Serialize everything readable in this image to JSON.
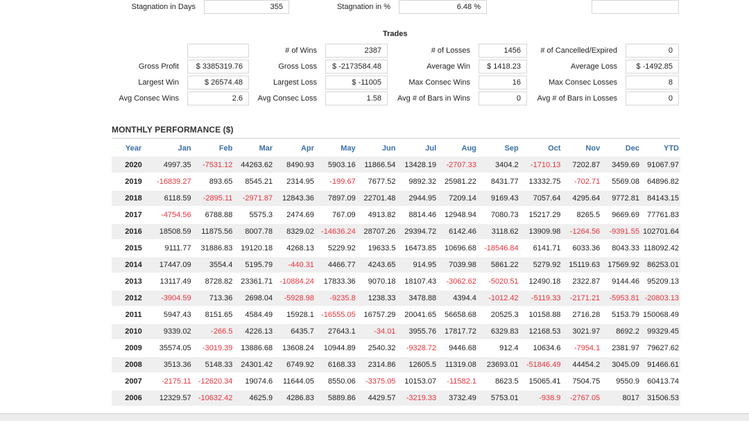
{
  "top_row": [
    {
      "label": "Stagnation in Days",
      "value": "355"
    },
    {
      "label": "Stagnation in %",
      "value": "6.48 %"
    },
    {
      "label": "",
      "value": ""
    }
  ],
  "trades": {
    "title": "Trades",
    "rows": [
      [
        {
          "label": "",
          "value": ""
        },
        {
          "label": "# of Wins",
          "value": "2387"
        },
        {
          "label": "# of Losses",
          "value": "1456"
        },
        {
          "label": "# of Cancelled/Expired",
          "value": "0"
        }
      ],
      [
        {
          "label": "Gross Profit",
          "value": "$ 3385319.76"
        },
        {
          "label": "Gross Loss",
          "value": "$ -2173584.48"
        },
        {
          "label": "Average Win",
          "value": "$ 1418.23"
        },
        {
          "label": "Average Loss",
          "value": "$ -1492.85"
        }
      ],
      [
        {
          "label": "Largest Win",
          "value": "$ 26574.48"
        },
        {
          "label": "Largest Loss",
          "value": "$ -11005"
        },
        {
          "label": "Max Consec Wins",
          "value": "16"
        },
        {
          "label": "Max Consec Losses",
          "value": "8"
        }
      ],
      [
        {
          "label": "Avg Consec Wins",
          "value": "2.6"
        },
        {
          "label": "Avg Consec Loss",
          "value": "1.58"
        },
        {
          "label": "Avg # of Bars in Wins",
          "value": "0"
        },
        {
          "label": "Avg # of Bars in Losses",
          "value": "0"
        }
      ]
    ]
  },
  "monthly": {
    "title": "MONTHLY PERFORMANCE ($)",
    "headers": [
      "Year",
      "Jan",
      "Feb",
      "Mar",
      "Apr",
      "May",
      "Jun",
      "Jul",
      "Aug",
      "Sep",
      "Oct",
      "Nov",
      "Dec",
      "YTD"
    ],
    "rows": [
      [
        "2020",
        "4997.35",
        "-7531.12",
        "44263.62",
        "8490.93",
        "5903.16",
        "11866.54",
        "13428.19",
        "-2707.33",
        "3404.2",
        "-1710.13",
        "7202.87",
        "3459.69",
        "91067.97"
      ],
      [
        "2019",
        "-16839.27",
        "893.65",
        "8545.21",
        "2314.95",
        "-199.67",
        "7677.52",
        "9892.32",
        "25981.22",
        "8431.77",
        "13332.75",
        "-702.71",
        "5569.08",
        "64896.82"
      ],
      [
        "2018",
        "6118.59",
        "-2895.11",
        "-2971.87",
        "12843.36",
        "7897.09",
        "22701.48",
        "2944.95",
        "7209.14",
        "9169.43",
        "7057.64",
        "4295.64",
        "9772.81",
        "84143.15"
      ],
      [
        "2017",
        "-4754.56",
        "6788.88",
        "5575.3",
        "2474.69",
        "767.09",
        "4913.82",
        "8814.46",
        "12948.94",
        "7080.73",
        "15217.29",
        "8265.5",
        "9669.69",
        "77761.83"
      ],
      [
        "2016",
        "18508.59",
        "11875.56",
        "8007.78",
        "8329.02",
        "-14636.24",
        "28707.26",
        "29394.72",
        "6142.46",
        "3118.62",
        "13909.98",
        "-1264.56",
        "-9391.55",
        "102701.64"
      ],
      [
        "2015",
        "9111.77",
        "31886.83",
        "19120.18",
        "4268.13",
        "5229.92",
        "19633.5",
        "16473.85",
        "10696.68",
        "-18546.84",
        "6141.71",
        "6033.36",
        "8043.33",
        "118092.42"
      ],
      [
        "2014",
        "17447.09",
        "3554.4",
        "5195.79",
        "-440.31",
        "4466.77",
        "4243.65",
        "914.95",
        "7039.98",
        "5861.22",
        "5279.92",
        "15119.63",
        "17569.92",
        "86253.01"
      ],
      [
        "2013",
        "13117.49",
        "8728.82",
        "23361.71",
        "-10884.24",
        "17833.36",
        "9070.18",
        "18107.43",
        "-3062.62",
        "-5020.51",
        "12490.18",
        "2322.87",
        "9144.46",
        "95209.13"
      ],
      [
        "2012",
        "-3904.59",
        "713.36",
        "2698.04",
        "-5928.98",
        "-9235.8",
        "1238.33",
        "3478.88",
        "4394.4",
        "-1012.42",
        "-5119.33",
        "-2171.21",
        "-5953.81",
        "-20803.13"
      ],
      [
        "2011",
        "5947.43",
        "8151.65",
        "4584.49",
        "15928.1",
        "-16555.05",
        "16757.29",
        "20041.65",
        "56658.68",
        "20525.3",
        "10158.88",
        "2716.28",
        "5153.79",
        "150068.49"
      ],
      [
        "2010",
        "9339.02",
        "-266.5",
        "4226.13",
        "6435.7",
        "27643.1",
        "-34.01",
        "3955.76",
        "17817.72",
        "6329.83",
        "12168.53",
        "3021.97",
        "8692.2",
        "99329.45"
      ],
      [
        "2009",
        "35574.05",
        "-3019.39",
        "13886.68",
        "13608.24",
        "10944.89",
        "2540.32",
        "-9328.72",
        "9446.68",
        "912.4",
        "10634.6",
        "-7954.1",
        "2381.97",
        "79627.62"
      ],
      [
        "2008",
        "3513.36",
        "5148.33",
        "24301.42",
        "6749.92",
        "6168.33",
        "2314.86",
        "12605.5",
        "11319.08",
        "23693.01",
        "-51846.49",
        "44454.2",
        "3045.09",
        "91466.61"
      ],
      [
        "2007",
        "-2175.11",
        "-12620.34",
        "19074.6",
        "11644.05",
        "8550.06",
        "-3375.05",
        "10153.07",
        "-11582.1",
        "8623.5",
        "15065.41",
        "7504.75",
        "9550.9",
        "60413.74"
      ],
      [
        "2006",
        "12329.57",
        "-10632.42",
        "4625.9",
        "4286.83",
        "5889.86",
        "4429.57",
        "-3219.33",
        "3732.49",
        "5753.01",
        "-938.9",
        "-2767.05",
        "8017",
        "31506.53"
      ]
    ]
  },
  "colors": {
    "header_text": "#3b6fa6",
    "negative": "#e8323c",
    "row_alt": "#efefef",
    "field_border": "#d6d6d6"
  }
}
